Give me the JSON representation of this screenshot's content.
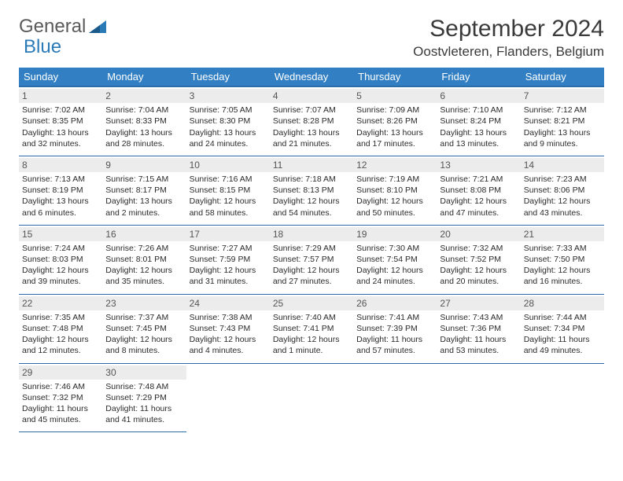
{
  "logo": {
    "text1": "General",
    "text2": "Blue"
  },
  "title": "September 2024",
  "location": "Oostvleteren, Flanders, Belgium",
  "colors": {
    "header_bg": "#3280c3",
    "header_border": "#2a6da7",
    "daynum_bg": "#ececec",
    "text": "#2a2a2a",
    "logo_blue": "#2a7ab8"
  },
  "weekdays": [
    "Sunday",
    "Monday",
    "Tuesday",
    "Wednesday",
    "Thursday",
    "Friday",
    "Saturday"
  ],
  "days": [
    {
      "n": "1",
      "sr": "7:02 AM",
      "ss": "8:35 PM",
      "dl": "13 hours and 32 minutes."
    },
    {
      "n": "2",
      "sr": "7:04 AM",
      "ss": "8:33 PM",
      "dl": "13 hours and 28 minutes."
    },
    {
      "n": "3",
      "sr": "7:05 AM",
      "ss": "8:30 PM",
      "dl": "13 hours and 24 minutes."
    },
    {
      "n": "4",
      "sr": "7:07 AM",
      "ss": "8:28 PM",
      "dl": "13 hours and 21 minutes."
    },
    {
      "n": "5",
      "sr": "7:09 AM",
      "ss": "8:26 PM",
      "dl": "13 hours and 17 minutes."
    },
    {
      "n": "6",
      "sr": "7:10 AM",
      "ss": "8:24 PM",
      "dl": "13 hours and 13 minutes."
    },
    {
      "n": "7",
      "sr": "7:12 AM",
      "ss": "8:21 PM",
      "dl": "13 hours and 9 minutes."
    },
    {
      "n": "8",
      "sr": "7:13 AM",
      "ss": "8:19 PM",
      "dl": "13 hours and 6 minutes."
    },
    {
      "n": "9",
      "sr": "7:15 AM",
      "ss": "8:17 PM",
      "dl": "13 hours and 2 minutes."
    },
    {
      "n": "10",
      "sr": "7:16 AM",
      "ss": "8:15 PM",
      "dl": "12 hours and 58 minutes."
    },
    {
      "n": "11",
      "sr": "7:18 AM",
      "ss": "8:13 PM",
      "dl": "12 hours and 54 minutes."
    },
    {
      "n": "12",
      "sr": "7:19 AM",
      "ss": "8:10 PM",
      "dl": "12 hours and 50 minutes."
    },
    {
      "n": "13",
      "sr": "7:21 AM",
      "ss": "8:08 PM",
      "dl": "12 hours and 47 minutes."
    },
    {
      "n": "14",
      "sr": "7:23 AM",
      "ss": "8:06 PM",
      "dl": "12 hours and 43 minutes."
    },
    {
      "n": "15",
      "sr": "7:24 AM",
      "ss": "8:03 PM",
      "dl": "12 hours and 39 minutes."
    },
    {
      "n": "16",
      "sr": "7:26 AM",
      "ss": "8:01 PM",
      "dl": "12 hours and 35 minutes."
    },
    {
      "n": "17",
      "sr": "7:27 AM",
      "ss": "7:59 PM",
      "dl": "12 hours and 31 minutes."
    },
    {
      "n": "18",
      "sr": "7:29 AM",
      "ss": "7:57 PM",
      "dl": "12 hours and 27 minutes."
    },
    {
      "n": "19",
      "sr": "7:30 AM",
      "ss": "7:54 PM",
      "dl": "12 hours and 24 minutes."
    },
    {
      "n": "20",
      "sr": "7:32 AM",
      "ss": "7:52 PM",
      "dl": "12 hours and 20 minutes."
    },
    {
      "n": "21",
      "sr": "7:33 AM",
      "ss": "7:50 PM",
      "dl": "12 hours and 16 minutes."
    },
    {
      "n": "22",
      "sr": "7:35 AM",
      "ss": "7:48 PM",
      "dl": "12 hours and 12 minutes."
    },
    {
      "n": "23",
      "sr": "7:37 AM",
      "ss": "7:45 PM",
      "dl": "12 hours and 8 minutes."
    },
    {
      "n": "24",
      "sr": "7:38 AM",
      "ss": "7:43 PM",
      "dl": "12 hours and 4 minutes."
    },
    {
      "n": "25",
      "sr": "7:40 AM",
      "ss": "7:41 PM",
      "dl": "12 hours and 1 minute."
    },
    {
      "n": "26",
      "sr": "7:41 AM",
      "ss": "7:39 PM",
      "dl": "11 hours and 57 minutes."
    },
    {
      "n": "27",
      "sr": "7:43 AM",
      "ss": "7:36 PM",
      "dl": "11 hours and 53 minutes."
    },
    {
      "n": "28",
      "sr": "7:44 AM",
      "ss": "7:34 PM",
      "dl": "11 hours and 49 minutes."
    },
    {
      "n": "29",
      "sr": "7:46 AM",
      "ss": "7:32 PM",
      "dl": "11 hours and 45 minutes."
    },
    {
      "n": "30",
      "sr": "7:48 AM",
      "ss": "7:29 PM",
      "dl": "11 hours and 41 minutes."
    }
  ],
  "labels": {
    "sunrise": "Sunrise:",
    "sunset": "Sunset:",
    "daylight": "Daylight:"
  },
  "layout": {
    "start_weekday": 0,
    "cols": 7
  }
}
